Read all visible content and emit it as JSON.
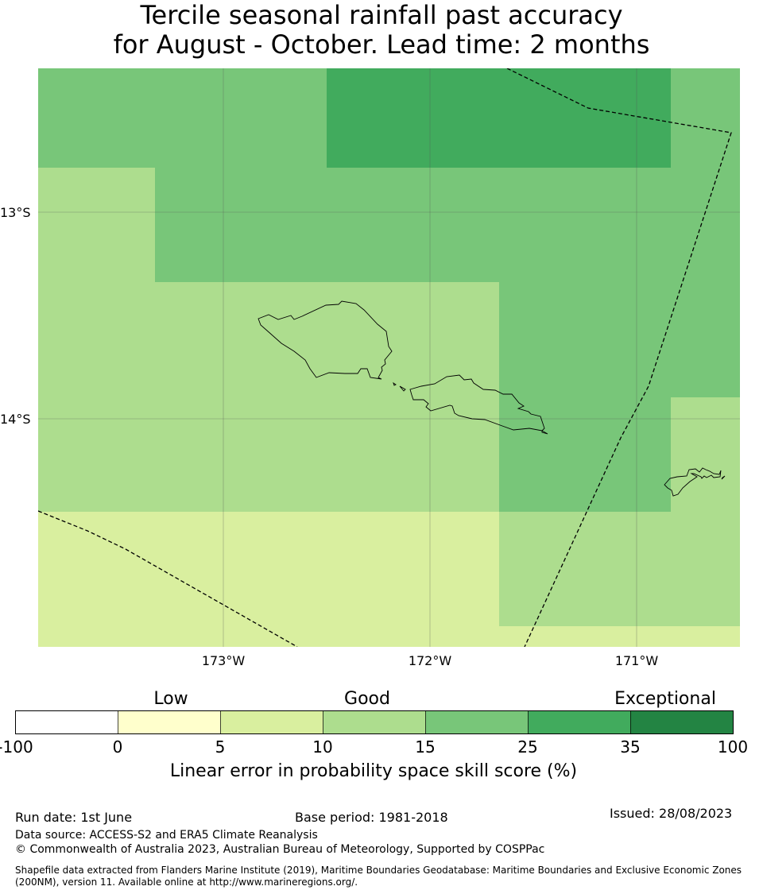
{
  "title": {
    "line1": "Tercile seasonal rainfall past accuracy",
    "line2": "for August - October. Lead time: 2 months"
  },
  "map": {
    "lat_labels": [
      "13°S",
      "14°S"
    ],
    "lon_labels": [
      "173°W",
      "172°W",
      "171°W"
    ]
  },
  "legend": {
    "categories": [
      "Low",
      "Good",
      "Exceptional"
    ],
    "ticks": [
      "-100",
      "0",
      "5",
      "10",
      "15",
      "25",
      "35",
      "100"
    ],
    "colors": [
      "#ffffff",
      "#ffffcc",
      "#d9ef9f",
      "#addd8e",
      "#78c679",
      "#41ab5d",
      "#238443"
    ],
    "title": "Linear error in probability space skill score (%)"
  },
  "footer": {
    "run_date": "Run date: 1st June",
    "base_period": "Base period: 1981-2018",
    "issued": "Issued: 28/08/2023",
    "data_source": "Data source: ACCESS-S2 and ERA5 Climate Reanalysis",
    "copyright": "© Commonwealth of Australia 2023, Australian Bureau of Meteorology, Supported by COSPPac",
    "shapefile": "Shapefile data extracted from Flanders Marine Institute (2019), Maritime Boundaries Geodatabase: Maritime Boundaries and Exclusive Economic Zones (200NM), version 11. Available online at http://www.marineregions.org/."
  }
}
